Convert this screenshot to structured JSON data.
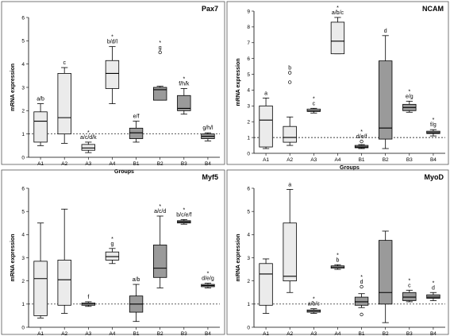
{
  "ylabel": "mRNA expression",
  "xlabel": "Groups",
  "colors": {
    "light": "#ebebeb",
    "dark": "#9a9a9a"
  },
  "chart_data": [
    {
      "type": "box",
      "title": "Pax7",
      "ylim": [
        0,
        6
      ],
      "yticks": [
        0,
        1,
        2,
        3,
        4,
        5,
        6
      ],
      "reference_line": 1,
      "categories": [
        "A1",
        "A2",
        "A3",
        "A4",
        "B1",
        "B2",
        "B3",
        "B4"
      ],
      "boxes": [
        {
          "group": "A1",
          "min": 0.5,
          "q1": 0.65,
          "median": 1.55,
          "q3": 1.95,
          "max": 2.3,
          "fill": "light",
          "label": "a/b",
          "star": false,
          "outliers": []
        },
        {
          "group": "A2",
          "min": 0.6,
          "q1": 1.0,
          "median": 1.7,
          "q3": 3.6,
          "max": 3.85,
          "fill": "light",
          "label": "c",
          "star": false,
          "outliers": []
        },
        {
          "group": "A3",
          "min": 0.2,
          "q1": 0.3,
          "median": 0.4,
          "q3": 0.55,
          "max": 0.65,
          "fill": "light",
          "label": "a/c/d/k",
          "star": true,
          "outliers": []
        },
        {
          "group": "A4",
          "min": 2.3,
          "q1": 2.95,
          "median": 3.6,
          "q3": 4.15,
          "max": 4.75,
          "fill": "light",
          "label": "b/d/l",
          "star": true,
          "outliers": []
        },
        {
          "group": "B1",
          "min": 0.65,
          "q1": 0.8,
          "median": 1.05,
          "q3": 1.25,
          "max": 1.55,
          "fill": "dark",
          "label": "e/f",
          "star": false,
          "outliers": []
        },
        {
          "group": "B2",
          "min": 2.45,
          "q1": 2.45,
          "median": 2.9,
          "q3": 3.0,
          "max": 3.05,
          "fill": "dark",
          "label": "g",
          "star": true,
          "outliers": [
            4.5
          ]
        },
        {
          "group": "B3",
          "min": 1.85,
          "q1": 2.0,
          "median": 2.1,
          "q3": 2.65,
          "max": 2.95,
          "fill": "dark",
          "label": "f/h/k",
          "star": true,
          "outliers": []
        },
        {
          "group": "B4",
          "min": 0.7,
          "q1": 0.8,
          "median": 0.9,
          "q3": 1.0,
          "max": 1.05,
          "fill": "dark",
          "label": "g/h/l",
          "star": false,
          "outliers": []
        }
      ]
    },
    {
      "type": "box",
      "title": "NCAM",
      "ylim": [
        0,
        9
      ],
      "yticks": [
        0,
        1,
        2,
        3,
        4,
        5,
        6,
        7,
        8,
        9
      ],
      "reference_line": 1,
      "categories": [
        "A1",
        "A2",
        "A3",
        "A4",
        "B1",
        "B2",
        "B3",
        "B4"
      ],
      "boxes": [
        {
          "group": "A1",
          "min": 0.3,
          "q1": 0.4,
          "median": 2.1,
          "q3": 3.0,
          "max": 3.5,
          "fill": "light",
          "label": "a",
          "star": false,
          "outliers": []
        },
        {
          "group": "A2",
          "min": 0.5,
          "q1": 0.7,
          "median": 1.0,
          "q3": 1.7,
          "max": 2.3,
          "fill": "light",
          "label": "b",
          "star": false,
          "outliers": [
            4.5,
            5.1
          ]
        },
        {
          "group": "A3",
          "min": 2.55,
          "q1": 2.65,
          "median": 2.7,
          "q3": 2.8,
          "max": 2.85,
          "fill": "light",
          "label": "c",
          "star": true,
          "outliers": []
        },
        {
          "group": "A4",
          "min": 6.3,
          "q1": 6.3,
          "median": 7.1,
          "q3": 8.3,
          "max": 8.6,
          "fill": "light",
          "label": "a/b/c",
          "star": true,
          "outliers": []
        },
        {
          "group": "B1",
          "min": 0.3,
          "q1": 0.35,
          "median": 0.4,
          "q3": 0.5,
          "max": 0.55,
          "fill": "dark",
          "label": "d/e/f",
          "star": true,
          "outliers": [
            0.75
          ]
        },
        {
          "group": "B2",
          "min": 0.3,
          "q1": 0.9,
          "median": 1.6,
          "q3": 5.85,
          "max": 7.45,
          "fill": "dark",
          "label": "d",
          "star": false,
          "outliers": []
        },
        {
          "group": "B3",
          "min": 2.6,
          "q1": 2.7,
          "median": 2.9,
          "q3": 3.1,
          "max": 3.3,
          "fill": "dark",
          "label": "e/g",
          "star": true,
          "outliers": []
        },
        {
          "group": "B4",
          "min": 1.1,
          "q1": 1.25,
          "median": 1.3,
          "q3": 1.4,
          "max": 1.5,
          "fill": "dark",
          "label": "f/g",
          "star": true,
          "outliers": []
        }
      ]
    },
    {
      "type": "box",
      "title": "Myf5",
      "ylim": [
        0,
        6
      ],
      "yticks": [
        0,
        1,
        2,
        3,
        4,
        5,
        6
      ],
      "reference_line": 1,
      "categories": [
        "A1",
        "A2",
        "A3",
        "A4",
        "B1",
        "B2",
        "B3",
        "B4"
      ],
      "boxes": [
        {
          "group": "A1",
          "min": 0.4,
          "q1": 0.5,
          "median": 2.1,
          "q3": 2.85,
          "max": 4.5,
          "fill": "light",
          "label": "",
          "star": false,
          "outliers": []
        },
        {
          "group": "A2",
          "min": 0.6,
          "q1": 0.95,
          "median": 2.05,
          "q3": 2.9,
          "max": 5.1,
          "fill": "light",
          "label": "",
          "star": false,
          "outliers": []
        },
        {
          "group": "A3",
          "min": 0.9,
          "q1": 0.95,
          "median": 1.0,
          "q3": 1.05,
          "max": 1.1,
          "fill": "light",
          "label": "f",
          "star": false,
          "outliers": []
        },
        {
          "group": "A4",
          "min": 2.75,
          "q1": 2.9,
          "median": 3.05,
          "q3": 3.25,
          "max": 3.4,
          "fill": "light",
          "label": "g",
          "star": true,
          "outliers": []
        },
        {
          "group": "B1",
          "min": 0.25,
          "q1": 0.65,
          "median": 1.0,
          "q3": 1.35,
          "max": 1.85,
          "fill": "dark",
          "label": "a/b",
          "star": false,
          "outliers": []
        },
        {
          "group": "B2",
          "min": 1.7,
          "q1": 2.15,
          "median": 2.55,
          "q3": 3.55,
          "max": 4.8,
          "fill": "dark",
          "label": "a/c/d",
          "star": true,
          "outliers": []
        },
        {
          "group": "B3",
          "min": 4.45,
          "q1": 4.5,
          "median": 4.55,
          "q3": 4.6,
          "max": 4.65,
          "fill": "dark",
          "label": "b/c/e/f",
          "star": true,
          "outliers": []
        },
        {
          "group": "B4",
          "min": 1.7,
          "q1": 1.75,
          "median": 1.8,
          "q3": 1.85,
          "max": 1.9,
          "fill": "dark",
          "label": "d/e/g",
          "star": true,
          "outliers": []
        }
      ]
    },
    {
      "type": "box",
      "title": "MyoD",
      "ylim": [
        0,
        6
      ],
      "yticks": [
        0,
        1,
        2,
        3,
        4,
        5,
        6
      ],
      "reference_line": 1,
      "categories": [
        "A1",
        "A2",
        "A3",
        "A4",
        "B1",
        "B2",
        "B3",
        "B4"
      ],
      "boxes": [
        {
          "group": "A1",
          "min": 0.6,
          "q1": 0.95,
          "median": 2.3,
          "q3": 2.75,
          "max": 2.95,
          "fill": "light",
          "label": "",
          "star": false,
          "outliers": []
        },
        {
          "group": "A2",
          "min": 1.5,
          "q1": 2.0,
          "median": 2.2,
          "q3": 4.5,
          "max": 5.95,
          "fill": "light",
          "label": "a",
          "star": false,
          "outliers": []
        },
        {
          "group": "A3",
          "min": 0.6,
          "q1": 0.65,
          "median": 0.7,
          "q3": 0.75,
          "max": 0.8,
          "fill": "light",
          "label": "a/b/c",
          "star": true,
          "outliers": []
        },
        {
          "group": "A4",
          "min": 2.5,
          "q1": 2.55,
          "median": 2.6,
          "q3": 2.65,
          "max": 2.7,
          "fill": "light",
          "label": "b",
          "star": true,
          "outliers": []
        },
        {
          "group": "B1",
          "min": 0.85,
          "q1": 0.95,
          "median": 1.1,
          "q3": 1.3,
          "max": 1.45,
          "fill": "dark",
          "label": "d",
          "star": true,
          "outliers": [
            0.55,
            1.75
          ]
        },
        {
          "group": "B2",
          "min": 0.2,
          "q1": 1.0,
          "median": 1.5,
          "q3": 3.75,
          "max": 4.15,
          "fill": "dark",
          "label": "",
          "star": false,
          "outliers": []
        },
        {
          "group": "B3",
          "min": 1.1,
          "q1": 1.15,
          "median": 1.3,
          "q3": 1.5,
          "max": 1.6,
          "fill": "dark",
          "label": "c",
          "star": true,
          "outliers": []
        },
        {
          "group": "B4",
          "min": 1.15,
          "q1": 1.25,
          "median": 1.3,
          "q3": 1.4,
          "max": 1.5,
          "fill": "dark",
          "label": "d",
          "star": true,
          "outliers": []
        }
      ]
    }
  ]
}
